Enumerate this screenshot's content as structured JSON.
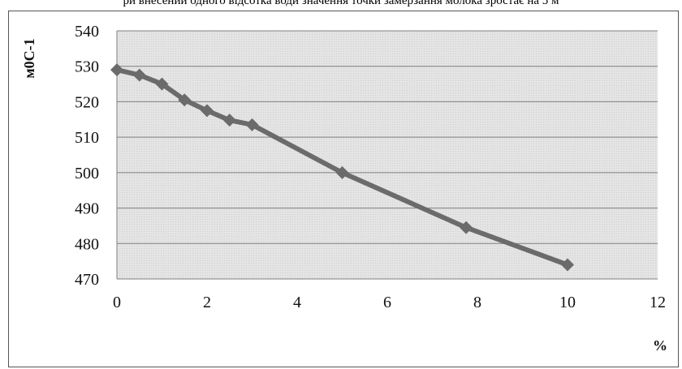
{
  "caption": "ри внесении одного відсотка води значення точки замерзання молока зростає на 5 м",
  "chart_data": {
    "type": "line",
    "title": "",
    "xlabel": "%",
    "ylabel": "м0С-1",
    "xlim": [
      0,
      12
    ],
    "ylim": [
      470,
      540
    ],
    "x_ticks": [
      "0",
      "2",
      "4",
      "6",
      "8",
      "10",
      "12"
    ],
    "y_ticks": [
      "540",
      "530",
      "520",
      "510",
      "500",
      "490",
      "480",
      "470"
    ],
    "grid": true,
    "marker": "diamond",
    "colors": {
      "series": "#6b6b6b",
      "plot_bg": "#e6e6e6",
      "grid": "#7f7f7f"
    },
    "series": [
      {
        "x": [
          0,
          0.5,
          1,
          1.5,
          2,
          2.5,
          3,
          5,
          7.75,
          10
        ],
        "y": [
          529,
          527.5,
          525,
          520.5,
          517.5,
          514.8,
          513.5,
          500,
          484.5,
          474
        ]
      }
    ]
  }
}
